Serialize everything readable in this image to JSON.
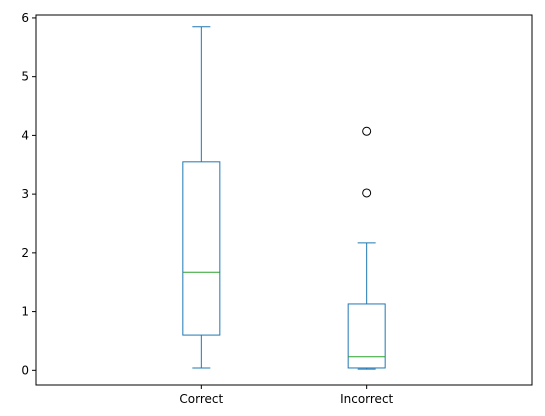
{
  "chart_data": {
    "type": "boxplot",
    "title": "",
    "xlabel": "",
    "ylabel": "",
    "ylim": [
      -0.25,
      6.05
    ],
    "yticks": [
      0,
      1,
      2,
      3,
      4,
      5,
      6
    ],
    "grid": false,
    "legend": "none",
    "colors": {
      "box": "#1f77b4",
      "median": "#2ca02c",
      "outlier": "#000000"
    },
    "categories": [
      "Correct",
      "Incorrect"
    ],
    "boxes": [
      {
        "name": "Correct",
        "whisker_low": 0.04,
        "q1": 0.6,
        "median": 1.67,
        "q3": 3.55,
        "whisker_high": 5.85,
        "outliers": []
      },
      {
        "name": "Incorrect",
        "whisker_low": 0.02,
        "q1": 0.04,
        "median": 0.23,
        "q3": 1.13,
        "whisker_high": 2.17,
        "outliers": [
          3.02,
          4.07
        ]
      }
    ]
  }
}
